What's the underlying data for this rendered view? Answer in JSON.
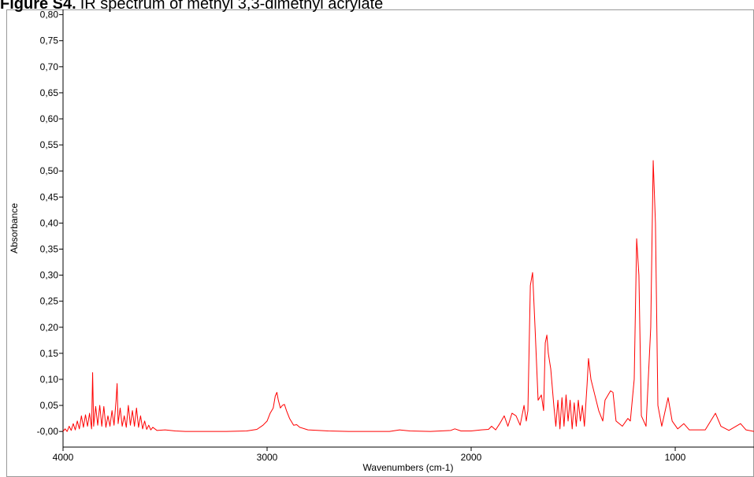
{
  "chart_data": {
    "type": "line",
    "title_prefix": "Figure S4.",
    "title": "IR spectrum of methyl 3,3-dimethyl acrylate",
    "x_label": "Wavenumbers (cm-1)",
    "y_label": "Absorbance",
    "xlim": [
      4000,
      614
    ],
    "ylim": [
      -0.03,
      0.81
    ],
    "xticks": [
      4000,
      3000,
      2000,
      1000
    ],
    "yticks": [
      {
        "value": 0,
        "label": "-0,00"
      },
      {
        "value": 0.05,
        "label": "0,05"
      },
      {
        "value": 0.1,
        "label": "0,10"
      },
      {
        "value": 0.15,
        "label": "0,15"
      },
      {
        "value": 0.2,
        "label": "0,20"
      },
      {
        "value": 0.25,
        "label": "0,25"
      },
      {
        "value": 0.3,
        "label": "0,30"
      },
      {
        "value": 0.35,
        "label": "0,35"
      },
      {
        "value": 0.4,
        "label": "0,40"
      },
      {
        "value": 0.45,
        "label": "0,45"
      },
      {
        "value": 0.5,
        "label": "0,50"
      },
      {
        "value": 0.55,
        "label": "0,55"
      },
      {
        "value": 0.6,
        "label": "0,60"
      },
      {
        "value": 0.65,
        "label": "0,65"
      },
      {
        "value": 0.7,
        "label": "0,70"
      },
      {
        "value": 0.75,
        "label": "0,75"
      },
      {
        "value": 0.8,
        "label": "0,80"
      }
    ],
    "x": [
      4000,
      3990,
      3980,
      3970,
      3960,
      3950,
      3940,
      3930,
      3920,
      3910,
      3900,
      3890,
      3880,
      3870,
      3860,
      3855,
      3850,
      3840,
      3830,
      3820,
      3810,
      3800,
      3790,
      3780,
      3770,
      3760,
      3750,
      3740,
      3735,
      3730,
      3720,
      3710,
      3700,
      3690,
      3680,
      3670,
      3660,
      3650,
      3640,
      3630,
      3620,
      3610,
      3600,
      3590,
      3580,
      3570,
      3560,
      3540,
      3500,
      3450,
      3400,
      3300,
      3200,
      3100,
      3050,
      3020,
      3000,
      2985,
      2970,
      2960,
      2952,
      2945,
      2935,
      2925,
      2915,
      2905,
      2890,
      2870,
      2855,
      2840,
      2800,
      2700,
      2600,
      2500,
      2400,
      2350,
      2300,
      2200,
      2100,
      2080,
      2050,
      2000,
      1950,
      1915,
      1900,
      1880,
      1860,
      1838,
      1820,
      1800,
      1780,
      1760,
      1741,
      1730,
      1722,
      1710,
      1699,
      1687,
      1672,
      1656,
      1645,
      1637,
      1629,
      1622,
      1610,
      1595,
      1585,
      1575,
      1565,
      1555,
      1545,
      1535,
      1525,
      1515,
      1505,
      1495,
      1485,
      1475,
      1465,
      1455,
      1445,
      1432,
      1425,
      1413,
      1394,
      1375,
      1355,
      1344,
      1317,
      1305,
      1290,
      1259,
      1232,
      1220,
      1201,
      1189,
      1178,
      1166,
      1143,
      1120,
      1108,
      1097,
      1085,
      1066,
      1035,
      1015,
      988,
      958,
      931,
      853,
      803,
      776,
      737,
      680,
      653,
      614
    ],
    "series": [
      {
        "name": "Absorbance",
        "color": "#ff0000",
        "values": [
          0,
          0.005,
          0,
          0.01,
          0.002,
          0.015,
          0.003,
          0.02,
          0.005,
          0.03,
          0.008,
          0.032,
          0.01,
          0.035,
          0.005,
          0.113,
          0.01,
          0.048,
          0.012,
          0.05,
          0.01,
          0.048,
          0.008,
          0.03,
          0.01,
          0.04,
          0.012,
          0.06,
          0.092,
          0.015,
          0.045,
          0.01,
          0.03,
          0.008,
          0.05,
          0.012,
          0.04,
          0.01,
          0.045,
          0.008,
          0.03,
          0.005,
          0.02,
          0.004,
          0.012,
          0.003,
          0.008,
          0.002,
          0.003,
          0.001,
          0,
          0,
          0,
          0.001,
          0.004,
          0.012,
          0.02,
          0.035,
          0.045,
          0.068,
          0.075,
          0.06,
          0.045,
          0.05,
          0.052,
          0.04,
          0.025,
          0.012,
          0.013,
          0.008,
          0.003,
          0.001,
          0,
          0,
          0,
          0.003,
          0.001,
          0,
          0.002,
          0.005,
          0.001,
          0.001,
          0.003,
          0.004,
          0.01,
          0.003,
          0.015,
          0.03,
          0.01,
          0.035,
          0.03,
          0.012,
          0.05,
          0.02,
          0.04,
          0.28,
          0.305,
          0.2,
          0.06,
          0.07,
          0.04,
          0.17,
          0.185,
          0.15,
          0.12,
          0.05,
          0.01,
          0.06,
          0.005,
          0.065,
          0.01,
          0.07,
          0.02,
          0.06,
          0.005,
          0.055,
          0.01,
          0.06,
          0.02,
          0.05,
          0.01,
          0.09,
          0.14,
          0.1,
          0.07,
          0.04,
          0.02,
          0.06,
          0.078,
          0.075,
          0.02,
          0.01,
          0.025,
          0.02,
          0.1,
          0.37,
          0.3,
          0.03,
          0.01,
          0.2,
          0.52,
          0.4,
          0.05,
          0.01,
          0.065,
          0.02,
          0.005,
          0.015,
          0.003,
          0.003,
          0.035,
          0.01,
          0.002,
          0.015,
          0.003,
          0
        ]
      }
    ]
  }
}
